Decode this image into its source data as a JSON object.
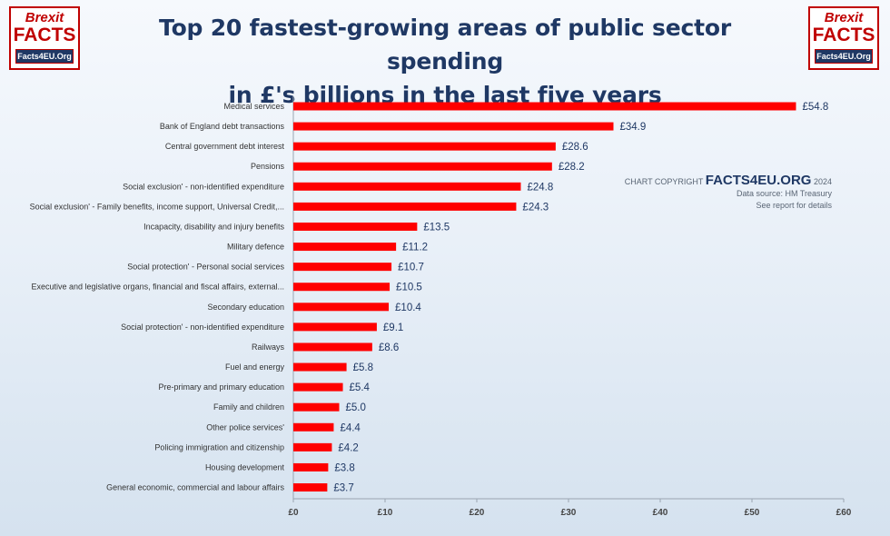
{
  "header": {
    "title_line1": "Top 20 fastest-growing areas of public sector spending",
    "title_line2": "in £'s billions in the last five years"
  },
  "logo": {
    "line1": "Brexit",
    "line2": "FACTS",
    "line3": "Facts4EU.Org"
  },
  "copyright": {
    "prefix": "CHART COPYRIGHT",
    "brand": "FACTS4EU.ORG",
    "year": "2024",
    "source": "Data source: HM Treasury",
    "note": "See report for details"
  },
  "colors": {
    "bar": "#ff0000",
    "title": "#1f3864",
    "gridline": "#c9d4e0"
  },
  "chart_data": {
    "type": "bar",
    "orientation": "horizontal",
    "title": "Top 20 fastest-growing areas of public sector spending in £'s billions in the last five years",
    "xlabel": "",
    "ylabel": "",
    "xlim": [
      0,
      60
    ],
    "grid": false,
    "ticks": [
      0,
      10,
      20,
      30,
      40,
      50,
      60
    ],
    "tick_labels": [
      "£0",
      "£10",
      "£20",
      "£30",
      "£40",
      "£50",
      "£60"
    ],
    "categories": [
      "Medical services",
      "Bank of England debt transactions",
      "Central government debt interest",
      "Pensions",
      "Social exclusion' - non-identified expenditure",
      "Social exclusion' - Family benefits, income support, Universal Credit,...",
      "Incapacity, disability and injury benefits",
      "Military defence",
      "Social protection' - Personal social services",
      "Executive and legislative organs, financial and fiscal affairs, external...",
      "Secondary education",
      "Social protection' - non-identified expenditure",
      "Railways",
      "Fuel and energy",
      "Pre-primary and primary education",
      "Family and children",
      "Other police services'",
      "Policing immigration and citizenship",
      "Housing development",
      "General economic, commercial and labour affairs"
    ],
    "values": [
      54.8,
      34.9,
      28.6,
      28.2,
      24.8,
      24.3,
      13.5,
      11.2,
      10.7,
      10.5,
      10.4,
      9.1,
      8.6,
      5.8,
      5.4,
      5.0,
      4.4,
      4.2,
      3.8,
      3.7
    ],
    "value_labels": [
      "£54.8",
      "£34.9",
      "£28.6",
      "£28.2",
      "£24.8",
      "£24.3",
      "£13.5",
      "£11.2",
      "£10.7",
      "£10.5",
      "£10.4",
      "£9.1",
      "£8.6",
      "£5.8",
      "£5.4",
      "£5.0",
      "£4.4",
      "£4.2",
      "£3.8",
      "£3.7"
    ]
  }
}
